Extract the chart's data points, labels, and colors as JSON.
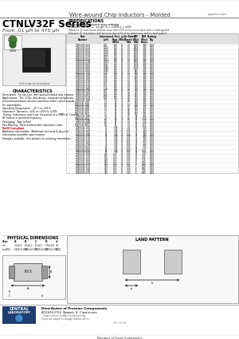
{
  "title_top": "Wire-wound Chip Inductors - Molded",
  "website": "ciparts.com",
  "series_title": "CTNLV32F Series",
  "series_subtitle": "From .01 μH to 470 μH",
  "spec_title": "SPECIFICATIONS",
  "spec_note1": "Please specify tolerance when ordering:",
  "spec_note2": "CTNLV32F-#R#_  —  ±1 μH, K = ±10%, J = ±5%",
  "spec_note3": "Tolerance (J): Inductance shall be more than ±5% of the initial value with no load applied.",
  "table_headers": [
    "Part Number",
    "Inductance\n(μH)",
    "L Test\nFreq.\n(MHz)",
    "Q\n(Min)",
    "Idc Rated\n(Amps)\nMax",
    "SRF\n(Min)\nMHz",
    "DCR\n(Max)\nOhms",
    "Packing\nQty"
  ],
  "table_data": [
    [
      "CTNLV32F-010J",
      "0.01",
      "100",
      "15",
      "1.0",
      "3000",
      ".030",
      "4000"
    ],
    [
      "CTNLV32F-012J",
      "0.012",
      "100",
      "15",
      "1.0",
      "2800",
      ".030",
      "4000"
    ],
    [
      "CTNLV32F-015J",
      "0.015",
      "100",
      "15",
      "1.0",
      "2500",
      ".030",
      "4000"
    ],
    [
      "CTNLV32F-018J",
      "0.018",
      "100",
      "15",
      "1.0",
      "2200",
      ".030",
      "4000"
    ],
    [
      "CTNLV32F-022J",
      "0.022",
      "100",
      "15",
      "1.0",
      "2000",
      ".030",
      "4000"
    ],
    [
      "CTNLV32F-027J",
      "0.027",
      "100",
      "15",
      "1.0",
      "1800",
      ".030",
      "4000"
    ],
    [
      "CTNLV32F-033J",
      "0.033",
      "100",
      "15",
      "1.0",
      "1600",
      ".030",
      "4000"
    ],
    [
      "CTNLV32F-039J",
      "0.039",
      "100",
      "15",
      "1.0",
      "1400",
      ".030",
      "4000"
    ],
    [
      "CTNLV32F-047J",
      "0.047",
      "100",
      "15",
      "1.0",
      "1300",
      ".030",
      "4000"
    ],
    [
      "CTNLV32F-056J",
      "0.056",
      "100",
      "15",
      "1.0",
      "1200",
      ".030",
      "4000"
    ],
    [
      "CTNLV32F-068J",
      "0.068",
      "100",
      "15",
      "1.0",
      "1100",
      ".030",
      "4000"
    ],
    [
      "CTNLV32F-082J",
      "0.082",
      "100",
      "15",
      "1.0",
      "900",
      ".030",
      "4000"
    ],
    [
      "CTNLV32F-100J",
      "0.10",
      "100",
      "15",
      "1.0",
      "800",
      ".030",
      "4000"
    ],
    [
      "CTNLV32F-120J",
      "0.12",
      "100",
      "15",
      "1.0",
      "700",
      ".030",
      "4000"
    ],
    [
      "CTNLV32F-150J",
      "0.15",
      "100",
      "15",
      "1.0",
      "600",
      ".030",
      "4000"
    ],
    [
      "CTNLV32F-180J",
      "0.18",
      "100",
      "15",
      "1.0",
      "500",
      ".030",
      "4000"
    ],
    [
      "CTNLV32F-220J",
      "0.22",
      "100",
      "15",
      "1.0",
      "450",
      ".030",
      "4000"
    ],
    [
      "CTNLV32F-270J",
      "0.27",
      "100",
      "15",
      "0.9",
      "400",
      ".030",
      "4000"
    ],
    [
      "CTNLV32F-330J",
      "0.33",
      "100",
      "15",
      "0.9",
      "350",
      ".030",
      "4000"
    ],
    [
      "CTNLV32F-390J",
      "0.39",
      "100",
      "15",
      "0.9",
      "320",
      ".030",
      "4000"
    ],
    [
      "CTNLV32F-470J",
      "0.47",
      "100",
      "15",
      "0.9",
      "300",
      ".030",
      "4000"
    ],
    [
      "CTNLV32F-560J",
      "0.56",
      "100",
      "15",
      "0.8",
      "270",
      ".030",
      "4000"
    ],
    [
      "CTNLV32F-680J",
      "0.68",
      "100",
      "15",
      "0.8",
      "250",
      ".030",
      "4000"
    ],
    [
      "CTNLV32F-820J",
      "0.82",
      "100",
      "15",
      "0.8",
      "230",
      ".035",
      "4000"
    ],
    [
      "CTNLV32F-1R0J",
      "1.0",
      "25",
      "30",
      "0.8",
      "200",
      ".040",
      "4000"
    ],
    [
      "CTNLV32F-1R2J",
      "1.2",
      "25",
      "30",
      "0.7",
      "180",
      ".045",
      "4000"
    ],
    [
      "CTNLV32F-1R5J",
      "1.5",
      "25",
      "30",
      "0.7",
      "160",
      ".050",
      "4000"
    ],
    [
      "CTNLV32F-1R8J",
      "1.8",
      "25",
      "30",
      "0.7",
      "140",
      ".055",
      "4000"
    ],
    [
      "CTNLV32F-2R2J",
      "2.2",
      "25",
      "30",
      "0.6",
      "120",
      ".060",
      "4000"
    ],
    [
      "CTNLV32F-2R7J",
      "2.7",
      "25",
      "30",
      "0.6",
      "110",
      ".065",
      "4000"
    ],
    [
      "CTNLV32F-3R3J",
      "3.3",
      "25",
      "30",
      "0.6",
      "100",
      ".075",
      "4000"
    ],
    [
      "CTNLV32F-3R9J",
      "3.9",
      "25",
      "30",
      "0.5",
      "90",
      ".085",
      "4000"
    ],
    [
      "CTNLV32F-4R7J",
      "4.7",
      "25",
      "30",
      "0.5",
      "80",
      ".100",
      "4000"
    ],
    [
      "CTNLV32F-5R6J",
      "5.6",
      "25",
      "30",
      "0.5",
      "70",
      ".120",
      "4000"
    ],
    [
      "CTNLV32F-6R8J",
      "6.8",
      "25",
      "30",
      "0.4",
      "60",
      ".140",
      "4000"
    ],
    [
      "CTNLV32F-8R2J",
      "8.2",
      "25",
      "30",
      "0.4",
      "55",
      ".165",
      "4000"
    ],
    [
      "CTNLV32F-100J",
      "10",
      "7.96",
      "40",
      "0.4",
      "50",
      ".190",
      "4000"
    ],
    [
      "CTNLV32F-120J",
      "12",
      "7.96",
      "40",
      "0.35",
      "45",
      ".230",
      "4000"
    ],
    [
      "CTNLV32F-150J",
      "15",
      "7.96",
      "40",
      "0.35",
      "40",
      ".280",
      "4000"
    ],
    [
      "CTNLV32F-180J",
      "18",
      "7.96",
      "40",
      "0.30",
      "35",
      ".340",
      "4000"
    ],
    [
      "CTNLV32F-220J",
      "22",
      "7.96",
      "40",
      "0.30",
      "30",
      ".420",
      "4000"
    ],
    [
      "CTNLV32F-270J",
      "27",
      "7.96",
      "40",
      "0.25",
      "27",
      ".520",
      "4000"
    ],
    [
      "CTNLV32F-330J",
      "33",
      "7.96",
      "40",
      "0.25",
      "24",
      ".620",
      "4000"
    ],
    [
      "CTNLV32F-390J",
      "39",
      "7.96",
      "40",
      "0.25",
      "22",
      ".750",
      "4000"
    ],
    [
      "CTNLV32F-470J",
      "47",
      "7.96",
      "40",
      "0.20",
      "20",
      ".900",
      "4000"
    ],
    [
      "CTNLV32F-560J",
      "56",
      "7.96",
      "40",
      "0.20",
      "18",
      "1.10",
      "4000"
    ],
    [
      "CTNLV32F-680J",
      "68",
      "7.96",
      "40",
      "0.20",
      "16",
      "1.35",
      "4000"
    ],
    [
      "CTNLV32F-820J",
      "82",
      "7.96",
      "40",
      "0.15",
      "14",
      "1.60",
      "4000"
    ],
    [
      "CTNLV32F-101J",
      "100",
      "2.52",
      "40",
      "0.15",
      "12",
      "2.00",
      "4000"
    ],
    [
      "CTNLV32F-121J",
      "120",
      "2.52",
      "40",
      "0.15",
      "11",
      "2.40",
      "4000"
    ],
    [
      "CTNLV32F-151J",
      "150",
      "2.52",
      "40",
      "0.15",
      "10",
      "3.00",
      "4000"
    ],
    [
      "CTNLV32F-181J",
      "180",
      "2.52",
      "40",
      "0.12",
      "9",
      "3.60",
      "4000"
    ],
    [
      "CTNLV32F-221J",
      "220",
      "2.52",
      "40",
      "0.12",
      "8",
      "4.40",
      "4000"
    ],
    [
      "CTNLV32F-271J",
      "270",
      "2.52",
      "40",
      "0.12",
      "7",
      "5.40",
      "4000"
    ],
    [
      "CTNLV32F-331J",
      "330",
      "2.52",
      "40",
      "0.10",
      "6",
      "6.60",
      "4000"
    ],
    [
      "CTNLV32F-391J",
      "390",
      "2.52",
      "40",
      "0.10",
      "6",
      "7.80",
      "4000"
    ],
    [
      "CTNLV32F-471J",
      "470",
      "2.52",
      "40",
      "0.10",
      "5",
      "9.40",
      "4000"
    ]
  ],
  "char_title": "CHARACTERISTICS",
  "char_lines": [
    "Description:  Ferrite core, wire-wound molded chip inductor",
    "Applications:  TVs, VCRs, disk drives, computer peripherals,",
    "telecommunications devices and inline filter/ control boards",
    "for automobiles.",
    "Operating Temperature:  -25°C to +85°C",
    "Inductance Tolerance: ±5% or ±10% & ±20%",
    "Testing:  Inductance and Q are measured at a VRMS of 1 and a",
    "HF field at a specified frequency.",
    "Packaging:  Tape & Reel",
    "Part Marking:  Parts marked with inductance code.",
    "RoHS Compliant",
    "Additional information:  Additional electrical & physical",
    "information available upon request.",
    "Samples available. See website for ordering information."
  ],
  "phys_title": "PHYSICAL DIMENSIONS",
  "phys_headers": [
    "Size",
    "A",
    "B",
    "C",
    "D",
    "d"
  ],
  "phys_rows": [
    [
      "mm",
      "3.2±0.2",
      "1.6±0.2",
      "1.1±0.2",
      "1.75±0.2",
      "0.3"
    ],
    [
      "Inch/Min",
      "0.126±0.008",
      "0.063±0.008",
      "0.043±0.008",
      "0.069±0.008",
      "0.012"
    ]
  ],
  "land_title": "LAND PATTERN",
  "footer_line1": "Distributor of Premier Components",
  "footer_addr": "800-638-2722  Newark, IL  Ciparts.com",
  "footer_note": "* Ciparts strives to offer the best pricing. Prices are subject to change without notice.",
  "bg_color": "#ffffff"
}
